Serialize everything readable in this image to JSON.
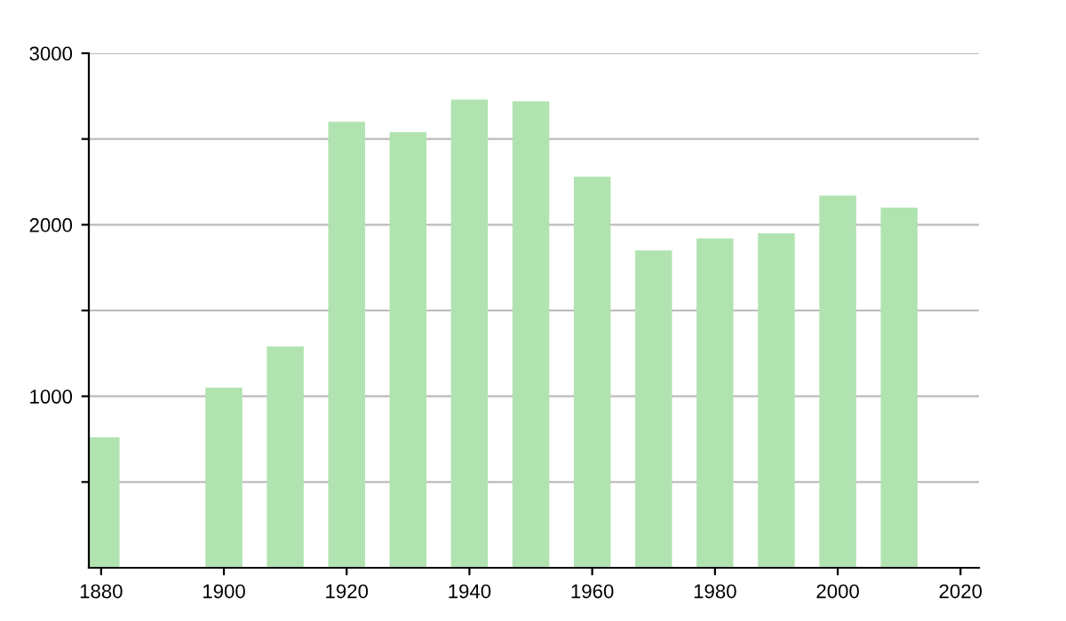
{
  "chart_data": {
    "type": "bar",
    "x": [
      1880,
      1900,
      1910,
      1920,
      1930,
      1940,
      1950,
      1960,
      1970,
      1980,
      1990,
      2000,
      2010
    ],
    "values": [
      760,
      1050,
      1290,
      2600,
      2540,
      2730,
      2720,
      2280,
      1850,
      1920,
      1950,
      2170,
      2100
    ],
    "color": "#b0e3b0",
    "xlim": [
      1878,
      2023
    ],
    "xticks": [
      1880,
      1900,
      1920,
      1940,
      1960,
      1980,
      2000,
      2020
    ],
    "ylim": [
      0,
      3000
    ],
    "yticks": [
      {
        "value": 500,
        "label": null
      },
      1000,
      {
        "value": 1500,
        "label": null
      },
      2000,
      {
        "value": 2500,
        "label": null
      },
      3000
    ],
    "grid": "y"
  }
}
